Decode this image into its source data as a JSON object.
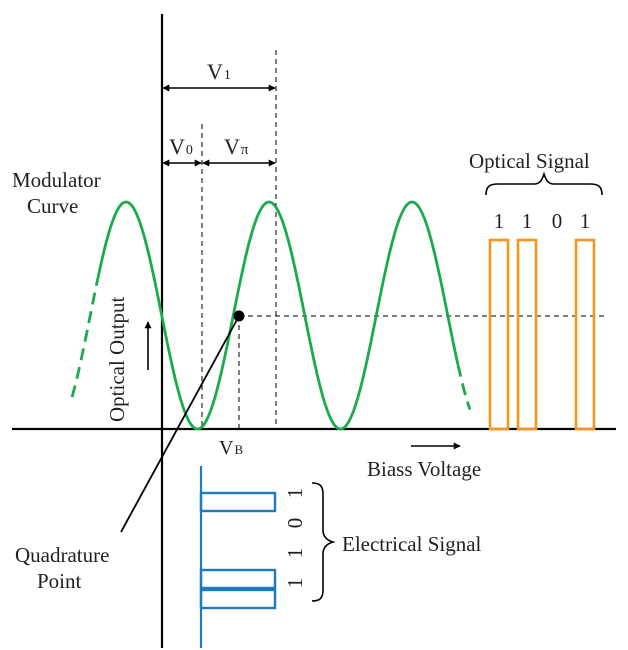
{
  "labels": {
    "v1": "V",
    "v1_sub": "1",
    "v0": "V",
    "v0_sub": "0",
    "vpi": "V",
    "vpi_sub": "π",
    "vb": "V",
    "vb_sub": "B",
    "modulator_line1": "Modulator",
    "modulator_line2": "Curve",
    "optical_output": "Optical Output",
    "optical_signal": "Optical Signal",
    "bias_voltage": "Biass Voltage",
    "electrical_signal": "Electrical Signal",
    "quadrature_line1": "Quadrature",
    "quadrature_line2": "Point"
  },
  "optical_bits": [
    "1",
    "1",
    "0",
    "1"
  ],
  "electrical_bits": [
    "1",
    "1",
    "0",
    "1"
  ],
  "colors": {
    "axis": "#000000",
    "modulator_curve": "#1aab4b",
    "optical_signal": "#f7941d",
    "electrical_signal": "#1f7bbf",
    "text": "#231f20"
  }
}
